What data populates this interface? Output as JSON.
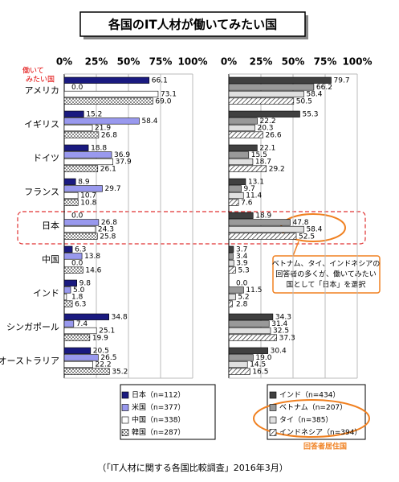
{
  "title": "各国のIT人材が働いてみたい国",
  "axis_header": [
    "働いて",
    "みたい国"
  ],
  "annotation": [
    "ベトナム、タイ、インドネシアの",
    "回答者の多くが、働いてみたい",
    "国として「日本」を選択"
  ],
  "legend_note": "回答者居住国",
  "source": "（「IT人材に関する各国比較調査」2016年3月）",
  "chart_data": [
    {
      "type": "bar",
      "orientation": "horizontal",
      "grid": true,
      "categories": [
        "アメリカ",
        "イギリス",
        "ドイツ",
        "フランス",
        "日本",
        "中国",
        "インド",
        "シンガポール",
        "オーストラリア"
      ],
      "xlim": [
        0,
        100
      ],
      "xticks": [
        {
          "value": 0,
          "label": "0%"
        },
        {
          "value": 25,
          "label": "25%"
        },
        {
          "value": 50,
          "label": "50%"
        },
        {
          "value": 75,
          "label": "75%"
        },
        {
          "value": 100,
          "label": "100%"
        }
      ],
      "series": [
        {
          "name": "日本（n=112）",
          "color": "#1a1a80",
          "values": [
            66.1,
            15.2,
            18.8,
            8.9,
            0,
            6.3,
            9.8,
            34.8,
            20.5
          ],
          "value_labels": [
            "66.1",
            "15.2",
            "18.8",
            "8.9",
            "0.0",
            "6.3",
            "9.8",
            "34.8",
            "20.5"
          ]
        },
        {
          "name": "米国（n=377）",
          "color": "#9999ee",
          "values": [
            0,
            58.4,
            36.9,
            29.7,
            26.8,
            13.8,
            5.0,
            7.4,
            26.5
          ],
          "value_labels": [
            "0.0",
            "58.4",
            "36.9",
            "29.7",
            "26.8",
            "13.8",
            "5.0",
            "7.4",
            "26.5"
          ]
        },
        {
          "name": "中国（n=338）",
          "color": "#ffffff",
          "values": [
            73.1,
            21.9,
            37.9,
            10.7,
            24.3,
            0,
            1.8,
            25.1,
            22.2
          ],
          "value_labels": [
            "73.1",
            "21.9",
            "37.9",
            "10.7",
            "24.3",
            "0.0",
            "1.8",
            "25.1",
            "22.2"
          ]
        },
        {
          "name": "韓国（n=287）",
          "color": "#ffffff",
          "pattern": "dots",
          "values": [
            69.0,
            26.8,
            26.1,
            10.8,
            25.8,
            14.6,
            6.3,
            19.9,
            35.2
          ],
          "value_labels": [
            "69.0",
            "26.8",
            "26.1",
            "10.8",
            "25.8",
            "14.6",
            "6.3",
            "19.9",
            "35.2"
          ]
        }
      ]
    },
    {
      "type": "bar",
      "orientation": "horizontal",
      "grid": true,
      "xlim": [
        0,
        100
      ],
      "xticks": [
        {
          "value": 0,
          "label": "0%"
        },
        {
          "value": 25,
          "label": "25%"
        },
        {
          "value": 50,
          "label": "50%"
        },
        {
          "value": 75,
          "label": "75%"
        },
        {
          "value": 100,
          "label": "100%"
        }
      ],
      "series": [
        {
          "name": "インド（n=434）",
          "color": "#404040",
          "values": [
            79.7,
            55.3,
            22.1,
            13.1,
            18.9,
            3.7,
            0,
            34.3,
            30.4
          ],
          "value_labels": [
            "79.7",
            "55.3",
            "22.1",
            "13.1",
            "18.9",
            "3.7",
            "0.0",
            "34.3",
            "30.4"
          ]
        },
        {
          "name": "ベトナム（n=207）",
          "color": "#999999",
          "values": [
            66.2,
            22.2,
            15.5,
            9.7,
            47.8,
            3.4,
            11.5,
            31.4,
            19.0
          ],
          "value_labels": [
            "66.2",
            "22.2",
            "15.5",
            "9.7",
            "47.8",
            "3.4",
            "11.5",
            "31.4",
            "19.0"
          ]
        },
        {
          "name": "タイ（n=385）",
          "color": "#e0e0e0",
          "values": [
            58.4,
            20.3,
            18.7,
            11.4,
            58.4,
            3.9,
            5.2,
            32.5,
            14.5
          ],
          "value_labels": [
            "58.4",
            "20.3",
            "18.7",
            "11.4",
            "58.4",
            "3.9",
            "5.2",
            "32.5",
            "14.5"
          ]
        },
        {
          "name": "インドネシア（n=394）",
          "color": "#ffffff",
          "pattern": "hatch",
          "values": [
            50.5,
            26.6,
            29.2,
            7.6,
            52.5,
            5.3,
            2.8,
            37.3,
            16.5
          ],
          "value_labels": [
            "50.5",
            "26.6",
            "29.2",
            "7.6",
            "52.5",
            "5.3",
            "2.8",
            "37.3",
            "16.5"
          ]
        }
      ]
    }
  ]
}
